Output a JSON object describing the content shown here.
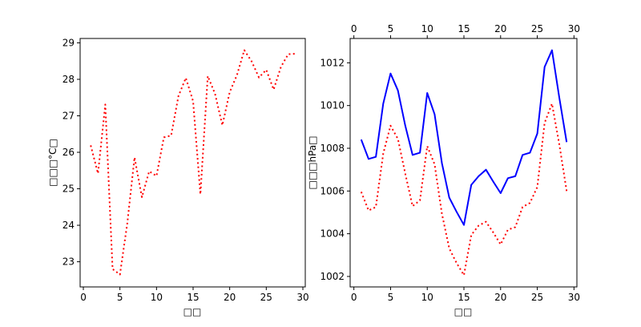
{
  "chart_data": [
    {
      "type": "line",
      "xlabel": "□□",
      "ylabel": "□□□°C□",
      "xlim": [
        -0.44,
        30.33
      ],
      "ylim": [
        22.31,
        29.12
      ],
      "xticks": [
        0,
        5,
        10,
        15,
        20,
        25,
        30
      ],
      "yticks": [
        23,
        24,
        25,
        26,
        27,
        28,
        29
      ],
      "grid": false,
      "x": [
        1,
        2,
        3,
        4,
        5,
        6,
        7,
        8,
        9,
        10,
        11,
        12,
        13,
        14,
        15,
        16,
        17,
        18,
        19,
        20,
        21,
        22,
        23,
        24,
        25,
        26,
        27,
        28,
        29
      ],
      "series": [
        {
          "color": "#ff0000",
          "style": "dotted",
          "values": [
            26.19,
            25.42,
            27.31,
            22.8,
            22.65,
            24.04,
            25.86,
            24.77,
            25.48,
            25.35,
            26.41,
            26.46,
            27.54,
            28.04,
            27.4,
            24.85,
            28.09,
            27.6,
            26.74,
            27.65,
            28.12,
            28.8,
            28.49,
            28.05,
            28.26,
            27.72,
            28.34,
            28.69,
            28.7
          ]
        }
      ]
    },
    {
      "type": "line",
      "xlabel": "□□",
      "ylabel": "□□□hPa□",
      "xlim": [
        -0.51,
        30.4
      ],
      "ylim": [
        1001.51,
        1013.14
      ],
      "xticks": [
        0,
        5,
        10,
        15,
        20,
        25,
        30
      ],
      "xticks_top": [
        0,
        5,
        10,
        15,
        20,
        25,
        30
      ],
      "yticks": [
        1002,
        1004,
        1006,
        1008,
        1010,
        1012
      ],
      "grid": false,
      "x": [
        1,
        2,
        3,
        4,
        5,
        6,
        7,
        8,
        9,
        10,
        11,
        12,
        13,
        14,
        15,
        16,
        17,
        18,
        19,
        20,
        21,
        22,
        23,
        24,
        25,
        26,
        27,
        28,
        29
      ],
      "series": [
        {
          "color": "#0000ff",
          "style": "solid",
          "values": [
            1008.41,
            1007.5,
            1007.6,
            1010.09,
            1011.5,
            1010.71,
            1009.06,
            1007.69,
            1007.79,
            1010.59,
            1009.59,
            1007.31,
            1005.69,
            1005.03,
            1004.41,
            1006.29,
            1006.69,
            1007.0,
            1006.44,
            1005.9,
            1006.6,
            1006.69,
            1007.69,
            1007.79,
            1008.69,
            1011.81,
            1012.59,
            1010.38,
            1008.29
          ]
        },
        {
          "color": "#ff0000",
          "style": "dotted",
          "values": [
            1005.96,
            1005.09,
            1005.25,
            1007.75,
            1009.06,
            1008.44,
            1006.81,
            1005.29,
            1005.56,
            1008.1,
            1007.25,
            1004.94,
            1003.31,
            1002.63,
            1002.06,
            1003.94,
            1004.38,
            1004.56,
            1004.06,
            1003.5,
            1004.19,
            1004.31,
            1005.25,
            1005.44,
            1006.19,
            1009.19,
            1010.09,
            1008.19,
            1006.0
          ]
        }
      ]
    }
  ]
}
